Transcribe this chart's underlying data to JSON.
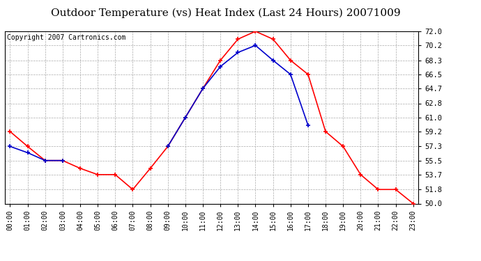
{
  "title": "Outdoor Temperature (vs) Heat Index (Last 24 Hours) 20071009",
  "copyright": "Copyright 2007 Cartronics.com",
  "hours": [
    "00:00",
    "01:00",
    "02:00",
    "03:00",
    "04:00",
    "05:00",
    "06:00",
    "07:00",
    "08:00",
    "09:00",
    "10:00",
    "11:00",
    "12:00",
    "13:00",
    "14:00",
    "15:00",
    "16:00",
    "17:00",
    "18:00",
    "19:00",
    "20:00",
    "21:00",
    "22:00",
    "23:00"
  ],
  "outdoor_temp": [
    59.2,
    57.3,
    55.5,
    55.5,
    54.5,
    53.7,
    53.7,
    51.8,
    54.5,
    57.3,
    61.0,
    64.7,
    68.3,
    71.0,
    72.0,
    71.0,
    68.3,
    66.5,
    59.2,
    57.3,
    53.7,
    51.8,
    51.8,
    50.0
  ],
  "heat_index": [
    57.3,
    56.5,
    55.5,
    55.5,
    null,
    null,
    null,
    null,
    null,
    57.3,
    61.0,
    64.7,
    67.5,
    69.3,
    70.2,
    68.3,
    66.5,
    60.0,
    null,
    null,
    null,
    null,
    null,
    null
  ],
  "ylim_min": 50.0,
  "ylim_max": 72.0,
  "yticks": [
    50.0,
    51.8,
    53.7,
    55.5,
    57.3,
    59.2,
    61.0,
    62.8,
    64.7,
    66.5,
    68.3,
    70.2,
    72.0
  ],
  "outdoor_color": "#ff0000",
  "heat_index_color": "#0000cc",
  "background_color": "#ffffff",
  "grid_color": "#aaaaaa",
  "title_fontsize": 11,
  "copyright_fontsize": 7
}
